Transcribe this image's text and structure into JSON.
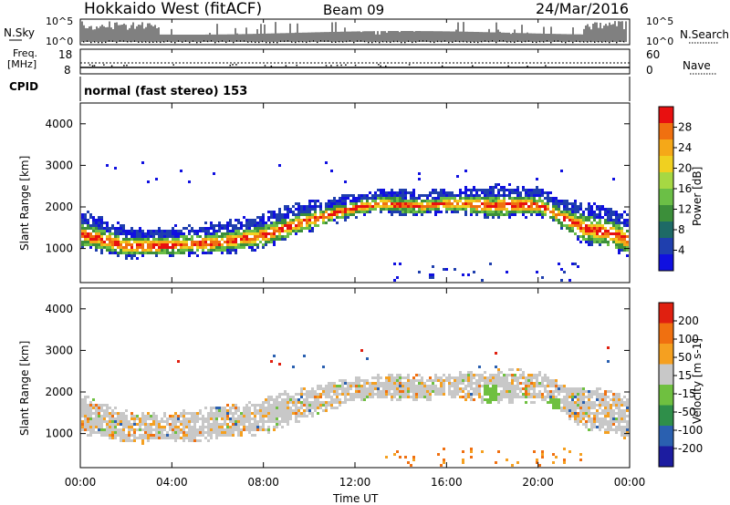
{
  "header": {
    "title": "Hokkaido West (fitACF)",
    "beam": "Beam 09",
    "date": "24/Mar/2016"
  },
  "noise_panel": {
    "left_label": "N.Sky",
    "right_label": "N.Search",
    "top_tick": "10^5",
    "bottom_tick": "10^0"
  },
  "freq_panel": {
    "label_line1": "Freq.",
    "label_line2": "[MHz]",
    "right_label": "Nave",
    "left_ticks": [
      "18",
      "8"
    ],
    "right_ticks": [
      "60",
      "0"
    ]
  },
  "cpid_panel": {
    "label": "CPID",
    "value": "normal (fast stereo) 153"
  },
  "axes": {
    "ylabel": "Slant Range [km]",
    "xlabel": "Time UT",
    "y_ticks": [
      "4000",
      "3000",
      "2000",
      "1000"
    ],
    "x_ticks": [
      "00:00",
      "04:00",
      "08:00",
      "12:00",
      "16:00",
      "20:00",
      "00:00"
    ]
  },
  "chart_data": [
    {
      "type": "heatmap",
      "name": "power",
      "x_range_hours": [
        0,
        24
      ],
      "ylim": [
        180,
        4500
      ],
      "colorbar_label": "Power [dB]",
      "colorbar_ticks": [
        "28",
        "24",
        "20",
        "16",
        "12",
        "8",
        "4"
      ],
      "colors": [
        "#1010e0",
        "#1f3fae",
        "#1e6a66",
        "#3c8f3a",
        "#6bbf46",
        "#a6d843",
        "#f0d020",
        "#f5a818",
        "#f07010",
        "#e81010"
      ],
      "echo_band_km": {
        "hours": [
          0,
          2,
          4,
          6,
          8,
          9,
          10,
          11,
          12,
          13,
          14,
          15,
          16,
          17,
          18,
          19,
          20,
          20.5,
          21,
          22,
          23,
          24
        ],
        "lower": [
          1100,
          850,
          900,
          950,
          1100,
          1300,
          1500,
          1700,
          1850,
          1950,
          1900,
          1900,
          1950,
          1900,
          1800,
          1850,
          1850,
          1750,
          1550,
          1200,
          1100,
          900
        ],
        "upper": [
          1900,
          1500,
          1500,
          1600,
          1800,
          2000,
          2100,
          2200,
          2300,
          2400,
          2400,
          2350,
          2400,
          2450,
          2500,
          2500,
          2450,
          2300,
          2200,
          2100,
          2000,
          1800
        ]
      }
    },
    {
      "type": "heatmap",
      "name": "velocity",
      "x_range_hours": [
        0,
        24
      ],
      "ylim": [
        180,
        4500
      ],
      "colorbar_label": "Velocity [m s-1]",
      "colorbar_ticks": [
        "200",
        "100",
        "50",
        "15",
        "-15",
        "-50",
        "-100",
        "-200"
      ],
      "colors": [
        "#1c1ca0",
        "#2a60b0",
        "#2f8f4a",
        "#6fc040",
        "#c8c8c8",
        "#f5a020",
        "#f07010",
        "#e02010"
      ]
    }
  ]
}
